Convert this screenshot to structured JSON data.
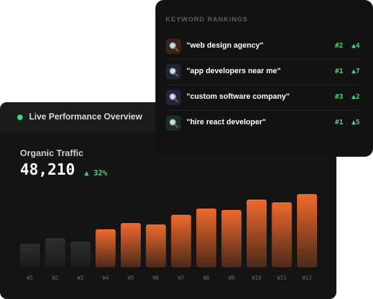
{
  "overview": {
    "title": "Live Performance Overview",
    "metric_label": "Organic Traffic",
    "metric_value": "48,210",
    "metric_change": "▲ 32%",
    "chart": {
      "type": "bar",
      "categories": [
        "W1",
        "W2",
        "W3",
        "W4",
        "W5",
        "W6",
        "W7",
        "W8",
        "W9",
        "W10",
        "W11",
        "W12"
      ],
      "values": [
        34,
        42,
        37,
        55,
        64,
        62,
        76,
        85,
        83,
        98,
        94,
        106
      ],
      "colors": [
        "#2e2e2e",
        "#2e2e2e",
        "#2e2e2e",
        "#f06a2c",
        "#f06a2c",
        "#f06a2c",
        "#f06a2c",
        "#f06a2c",
        "#f06a2c",
        "#f06a2c",
        "#f06a2c",
        "#f06a2c"
      ],
      "ylim": [
        0,
        110
      ]
    }
  },
  "rankings": {
    "title": "KEYWORD RANKINGS",
    "rows": [
      {
        "keyword": "\"web design agency\"",
        "rank": "#2",
        "change": "▲4"
      },
      {
        "keyword": "\"app developers near me\"",
        "rank": "#1",
        "change": "▲7"
      },
      {
        "keyword": "\"custom software company\"",
        "rank": "#3",
        "change": "▲2"
      },
      {
        "keyword": "\"hire react developer\"",
        "rank": "#1",
        "change": "▲5"
      }
    ]
  }
}
